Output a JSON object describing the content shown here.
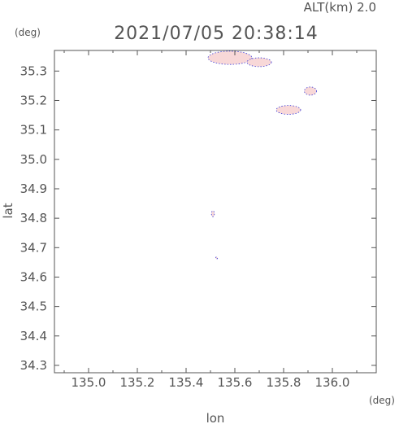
{
  "header": {
    "altitude": "ALT(km) 2.0",
    "timestamp": "2021/07/05 20:38:14"
  },
  "chart_data": {
    "type": "scatter",
    "title": "2021/07/05 20:38:14",
    "xlabel": "lon",
    "ylabel": "lat",
    "x_unit": "(deg)",
    "y_unit": "(deg)",
    "xlim": [
      134.86,
      136.18
    ],
    "ylim": [
      34.275,
      35.37
    ],
    "xticks": [
      135.0,
      135.2,
      135.4,
      135.6,
      135.8,
      136.0
    ],
    "xtick_labels": [
      "135.0",
      "135.2",
      "135.4",
      "135.6",
      "135.8",
      "136.0"
    ],
    "yticks": [
      34.3,
      34.4,
      34.5,
      34.6,
      34.7,
      34.8,
      34.9,
      35.0,
      35.1,
      35.2,
      35.3
    ],
    "ytick_labels": [
      "34.3",
      "34.4",
      "34.5",
      "34.6",
      "34.7",
      "34.8",
      "34.9",
      "35.0",
      "35.1",
      "35.2",
      "35.3"
    ],
    "grid": false,
    "colors": {
      "fill": "#f8d8d8",
      "edge": "#3a3ad8",
      "axis": "#555555"
    },
    "regions": [
      {
        "name": "echo-north-large",
        "center": [
          135.58,
          35.345
        ],
        "extent": [
          0.18,
          0.045
        ]
      },
      {
        "name": "echo-north-tail",
        "center": [
          135.7,
          35.33
        ],
        "extent": [
          0.1,
          0.03
        ]
      },
      {
        "name": "echo-east-small",
        "center": [
          135.91,
          35.232
        ],
        "extent": [
          0.05,
          0.028
        ]
      },
      {
        "name": "echo-east-elongated",
        "center": [
          135.82,
          35.168
        ],
        "extent": [
          0.1,
          0.03
        ]
      },
      {
        "name": "echo-speck-central",
        "center": [
          135.51,
          34.815
        ],
        "extent": [
          0.012,
          0.02
        ]
      },
      {
        "name": "echo-speck-south",
        "center": [
          135.525,
          34.665
        ],
        "extent": [
          0.006,
          0.004
        ]
      }
    ]
  }
}
